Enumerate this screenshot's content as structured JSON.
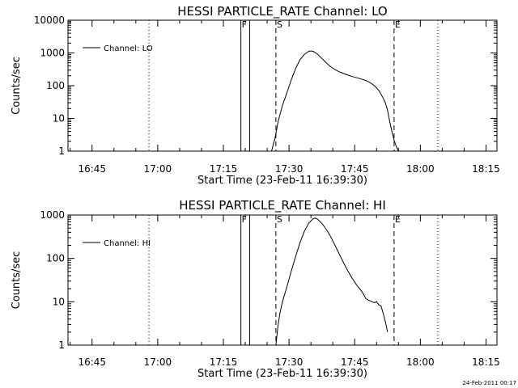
{
  "chart_data": [
    {
      "type": "line",
      "title": "HESSI PARTICLE_RATE Channel: LO",
      "xlabel": "Start Time (23-Feb-11 16:39:30)",
      "ylabel": "Counts/sec",
      "x_ticks": [
        "16:45",
        "17:00",
        "17:15",
        "17:30",
        "17:45",
        "18:00",
        "18:15"
      ],
      "y_ticks": [
        "1",
        "10",
        "100",
        "1000",
        "10000"
      ],
      "yscale": "log",
      "ylim": [
        1,
        10000
      ],
      "xlim_minutes": [
        0,
        98
      ],
      "legend": {
        "label": "Channel: LO",
        "placement": "top-left"
      },
      "markers": [
        {
          "label": "F",
          "t": 39.5,
          "style": "solid"
        },
        {
          "label": "",
          "t": 41.5,
          "style": "solid"
        },
        {
          "label": "S",
          "t": 47.5,
          "style": "dashed"
        },
        {
          "label": "E",
          "t": 74.5,
          "style": "dashed"
        }
      ],
      "dotted_lines": [
        18.5,
        84.5
      ],
      "series": [
        {
          "name": "Channel: LO",
          "x_minutes": [
            46.5,
            47.3,
            48.0,
            49.0,
            50.0,
            51.0,
            52.0,
            53.0,
            54.0,
            55.0,
            55.5,
            56.0,
            57.0,
            58.0,
            59.0,
            60.0,
            61.0,
            62.0,
            63.0,
            64.0,
            65.0,
            66.0,
            67.0,
            68.0,
            69.0,
            70.0,
            71.0,
            72.0,
            72.5,
            73.0,
            73.5,
            74.0,
            74.5,
            75.0,
            75.5
          ],
          "y": [
            1.0,
            2.5,
            8.0,
            25,
            60,
            150,
            330,
            620,
            900,
            1120,
            1150,
            1120,
            920,
            680,
            500,
            380,
            310,
            265,
            235,
            210,
            190,
            175,
            160,
            145,
            125,
            100,
            72,
            42,
            30,
            18,
            8,
            4,
            2.2,
            1.4,
            1.0
          ]
        }
      ],
      "annotation": ""
    },
    {
      "type": "line",
      "title": "HESSI PARTICLE_RATE Channel: HI",
      "xlabel": "Start Time (23-Feb-11 16:39:30)",
      "ylabel": "Counts/sec",
      "x_ticks": [
        "16:45",
        "17:00",
        "17:15",
        "17:30",
        "17:45",
        "18:00",
        "18:15"
      ],
      "y_ticks": [
        "1",
        "10",
        "100",
        "1000"
      ],
      "yscale": "log",
      "ylim": [
        1,
        1000
      ],
      "xlim_minutes": [
        0,
        98
      ],
      "legend": {
        "label": "Channel: HI",
        "placement": "top-left"
      },
      "markers": [
        {
          "label": "F",
          "t": 39.5,
          "style": "solid"
        },
        {
          "label": "",
          "t": 41.5,
          "style": "solid"
        },
        {
          "label": "S",
          "t": 47.5,
          "style": "dashed"
        },
        {
          "label": "E",
          "t": 74.5,
          "style": "dashed"
        }
      ],
      "dotted_lines": [
        18.5,
        84.5
      ],
      "series": [
        {
          "name": "Channel: HI",
          "x_minutes": [
            47.5,
            48.0,
            48.5,
            49.0,
            50.0,
            51.0,
            52.0,
            53.0,
            54.0,
            55.0,
            56.0,
            56.5,
            57.0,
            58.0,
            59.0,
            60.0,
            61.0,
            62.0,
            63.0,
            64.0,
            65.0,
            66.0,
            67.0,
            67.5,
            68.0,
            68.5,
            69.0,
            69.5,
            70.0,
            70.5,
            71.0,
            71.5,
            72.0,
            72.5,
            73.0
          ],
          "y": [
            1.0,
            3.0,
            6.0,
            10,
            22,
            50,
            110,
            230,
            420,
            650,
            820,
            850,
            800,
            640,
            470,
            320,
            200,
            125,
            78,
            50,
            34,
            24,
            18,
            15,
            12,
            11,
            10.5,
            10,
            9.5,
            10,
            8.5,
            8,
            5.5,
            3.5,
            2.0
          ]
        }
      ],
      "annotation": "24-Feb-2011 00:17"
    }
  ]
}
